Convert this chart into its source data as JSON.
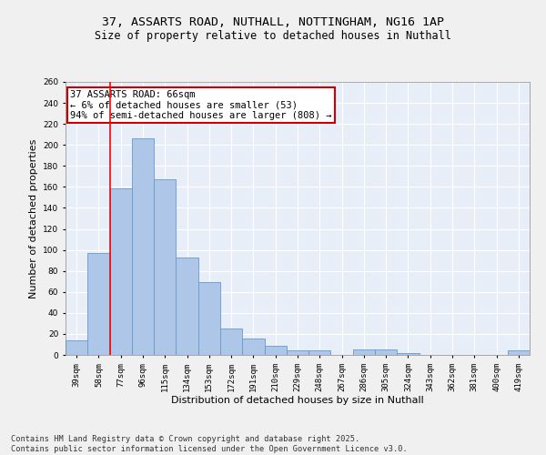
{
  "title_line1": "37, ASSARTS ROAD, NUTHALL, NOTTINGHAM, NG16 1AP",
  "title_line2": "Size of property relative to detached houses in Nuthall",
  "xlabel": "Distribution of detached houses by size in Nuthall",
  "ylabel": "Number of detached properties",
  "categories": [
    "39sqm",
    "58sqm",
    "77sqm",
    "96sqm",
    "115sqm",
    "134sqm",
    "153sqm",
    "172sqm",
    "191sqm",
    "210sqm",
    "229sqm",
    "248sqm",
    "267sqm",
    "286sqm",
    "305sqm",
    "324sqm",
    "343sqm",
    "362sqm",
    "381sqm",
    "400sqm",
    "419sqm"
  ],
  "values": [
    14,
    97,
    159,
    206,
    167,
    93,
    69,
    25,
    16,
    9,
    4,
    4,
    0,
    5,
    5,
    2,
    0,
    0,
    0,
    0,
    4
  ],
  "bar_color": "#aec6e8",
  "bar_edge_color": "#6699cc",
  "red_line_x": 1.5,
  "annotation_text": "37 ASSARTS ROAD: 66sqm\n← 6% of detached houses are smaller (53)\n94% of semi-detached houses are larger (808) →",
  "annotation_box_color": "#ffffff",
  "annotation_box_edge_color": "#cc0000",
  "ylim": [
    0,
    260
  ],
  "yticks": [
    0,
    20,
    40,
    60,
    80,
    100,
    120,
    140,
    160,
    180,
    200,
    220,
    240,
    260
  ],
  "background_color": "#e8eef8",
  "grid_color": "#ffffff",
  "footer_line1": "Contains HM Land Registry data © Crown copyright and database right 2025.",
  "footer_line2": "Contains public sector information licensed under the Open Government Licence v3.0.",
  "title_fontsize": 9.5,
  "subtitle_fontsize": 8.5,
  "tick_fontsize": 6.5,
  "ylabel_fontsize": 8,
  "xlabel_fontsize": 8,
  "annotation_fontsize": 7.5,
  "footer_fontsize": 6.2
}
